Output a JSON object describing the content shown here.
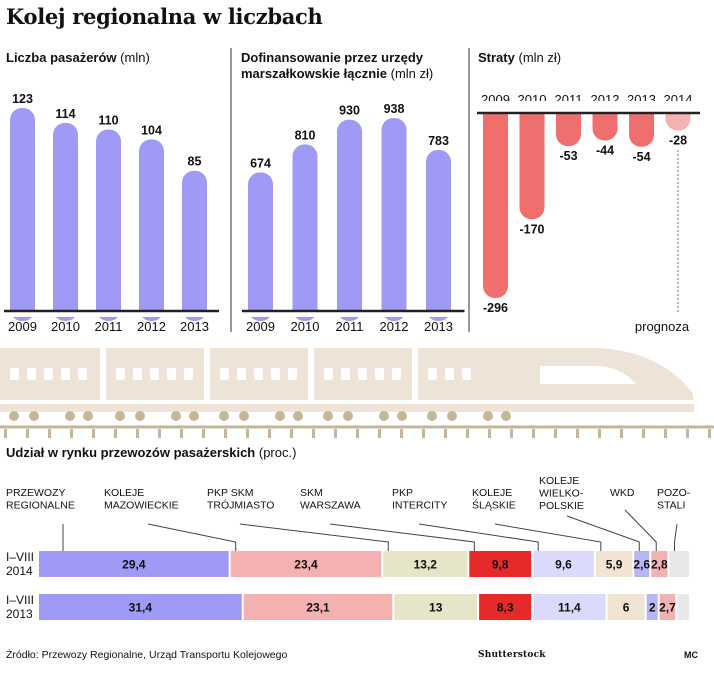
{
  "title": "Kolej regionalna w liczbach",
  "source": "Źródło: Przewozy Regionalne, Urząd Transportu Kolejowego",
  "watermark": "Shutterstock",
  "credit": "MC",
  "colors": {
    "purple": "#9e9af5",
    "red": "#ef6f6f",
    "red_light": "#f4b1b1",
    "train": "#ede3d6",
    "train_dark": "#c5b59b",
    "axis": "#222222"
  },
  "chart_data": [
    {
      "type": "bar",
      "title": "Liczba pasażerów",
      "unit": "(mln)",
      "categories": [
        "2009",
        "2010",
        "2011",
        "2012",
        "2013"
      ],
      "values": [
        123,
        114,
        110,
        104,
        85
      ],
      "value_labels": [
        "123",
        "114",
        "110",
        "104",
        "85"
      ],
      "ylim": [
        0,
        123
      ]
    },
    {
      "type": "bar",
      "title_line1": "Dofinansowanie przez urzędy",
      "title_line2": "marszałkowskie łącznie",
      "unit": "(mln zł)",
      "categories": [
        "2009",
        "2010",
        "2011",
        "2012",
        "2013"
      ],
      "values": [
        674,
        810,
        930,
        938,
        783
      ],
      "value_labels": [
        "674",
        "810",
        "930",
        "938",
        "783"
      ],
      "ylim": [
        0,
        938
      ]
    },
    {
      "type": "bar",
      "title": "Straty",
      "unit": "(mln zł)",
      "categories": [
        "2009",
        "2010",
        "2011",
        "2012",
        "2013",
        "2014"
      ],
      "values": [
        -296,
        -170,
        -53,
        -44,
        -54,
        -28
      ],
      "value_labels": [
        "-296",
        "-170",
        "-53",
        "-44",
        "-54",
        "-28"
      ],
      "forecast_note": "prognoza",
      "ylim": [
        -296,
        0
      ]
    },
    {
      "type": "bar",
      "stacked": true,
      "orientation": "horizontal",
      "title": "Udział w rynku przewozów pasażerskich",
      "unit": "(proc.)",
      "rows": [
        {
          "label_line1": "I–VIII",
          "label_line2": "2014"
        },
        {
          "label_line1": "I–VIII",
          "label_line2": "2013"
        }
      ],
      "series": [
        {
          "name_lines": [
            "PRZEWOZY",
            "REGIONALNE"
          ],
          "color": "#9e9af5",
          "values": [
            29.4,
            31.4
          ],
          "labels": [
            "29,4",
            "31,4"
          ]
        },
        {
          "name_lines": [
            "KOLEJE",
            "MAZOWIECKIE"
          ],
          "color": "#f4b1b1",
          "values": [
            23.4,
            23.1
          ],
          "labels": [
            "23,4",
            "23,1"
          ]
        },
        {
          "name_lines": [
            "PKP SKM",
            "TRÓJMIASTO"
          ],
          "color": "#e6e5c7",
          "values": [
            13.2,
            13
          ],
          "labels": [
            "13,2",
            "13"
          ]
        },
        {
          "name_lines": [
            "SKM",
            "WARSZAWA"
          ],
          "color": "#e62a2a",
          "values": [
            9.8,
            8.3
          ],
          "labels": [
            "9,8",
            "8,3"
          ]
        },
        {
          "name_lines": [
            "PKP",
            "INTERCITY"
          ],
          "color": "#dcdafc",
          "values": [
            9.6,
            11.4
          ],
          "labels": [
            "9,6",
            "11,4"
          ]
        },
        {
          "name_lines": [
            "KOLEJE",
            "ŚLĄSKIE"
          ],
          "color": "#f2e4d3",
          "values": [
            5.9,
            6
          ],
          "labels": [
            "5,9",
            "6"
          ]
        },
        {
          "name_lines": [
            "KOLEJE",
            "WIELKO-",
            "POLSKIE"
          ],
          "color": "#b8b5f7",
          "values": [
            2.6,
            2
          ],
          "labels": [
            "2,6",
            "2"
          ]
        },
        {
          "name_lines": [
            "WKD"
          ],
          "color": "#f4b1b1",
          "values": [
            2.8,
            2.7
          ],
          "labels": [
            "2,8",
            "2,7"
          ]
        },
        {
          "name_lines": [
            "POZO-",
            "STALI"
          ],
          "color": "#e8e8e8",
          "values": [
            3.3,
            2.1
          ],
          "labels": [
            "",
            ""
          ]
        }
      ]
    }
  ]
}
